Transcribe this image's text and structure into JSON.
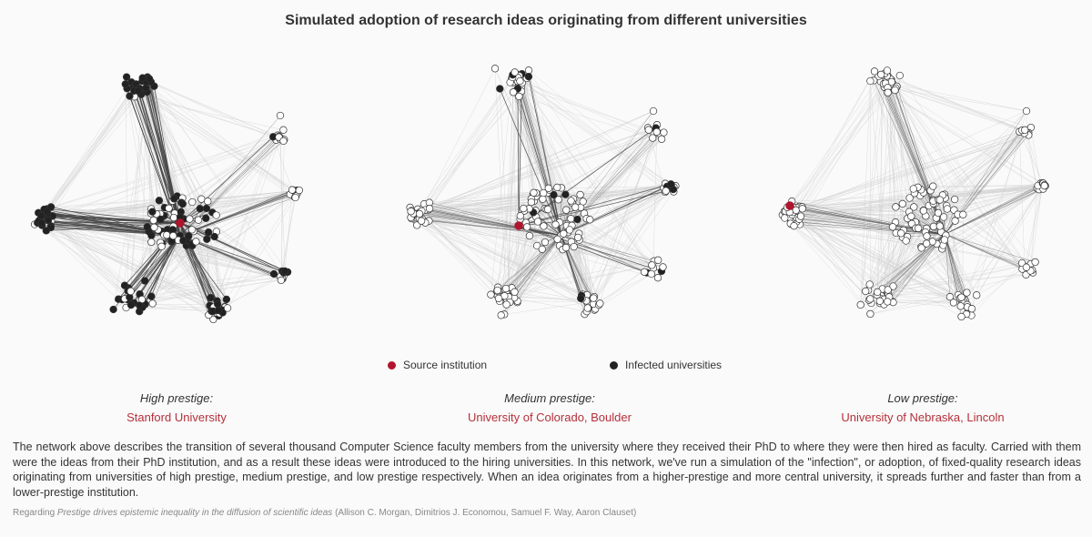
{
  "title": "Simulated adoption of research ideas originating from different universities",
  "colors": {
    "source": "#b0152d",
    "infected": "#222222",
    "uninfected_fill": "#ffffff",
    "node_stroke": "#333333",
    "background_edge": "#d0d0d0",
    "infection_edge": "#444444",
    "university_link": "#b5303a"
  },
  "legend": {
    "source_label": "Source institution",
    "infected_label": "Infected universities"
  },
  "panels": [
    {
      "prestige_label": "High prestige:",
      "university": "Stanford University",
      "spread": "high"
    },
    {
      "prestige_label": "Medium prestige:",
      "university": "University of Colorado, Boulder",
      "spread": "medium"
    },
    {
      "prestige_label": "Low prestige:",
      "university": "University of Nebraska, Lincoln",
      "spread": "low"
    }
  ],
  "description": "The network above describes the transition of several thousand Computer Science faculty members from the university where they received their PhD to where they were then hired as faculty. Carried with them were the ideas from their PhD institution, and as a result these ideas were introduced to the hiring universities. In this network, we've run a simulation of the \"infection\", or adoption, of fixed-quality research ideas originating from universities of high prestige, medium prestige, and low prestige respectively. When an idea originates from a higher-prestige and more central university, it spreads further and faster than from a lower-prestige institution.",
  "reference": {
    "prefix": "Regarding ",
    "paper_title": "Prestige drives epistemic inequality in the diffusion of scientific ideas",
    "authors": " (Allison C. Morgan, Dimitrios J. Economou, Samuel F. Way, Aaron Clauset)"
  }
}
